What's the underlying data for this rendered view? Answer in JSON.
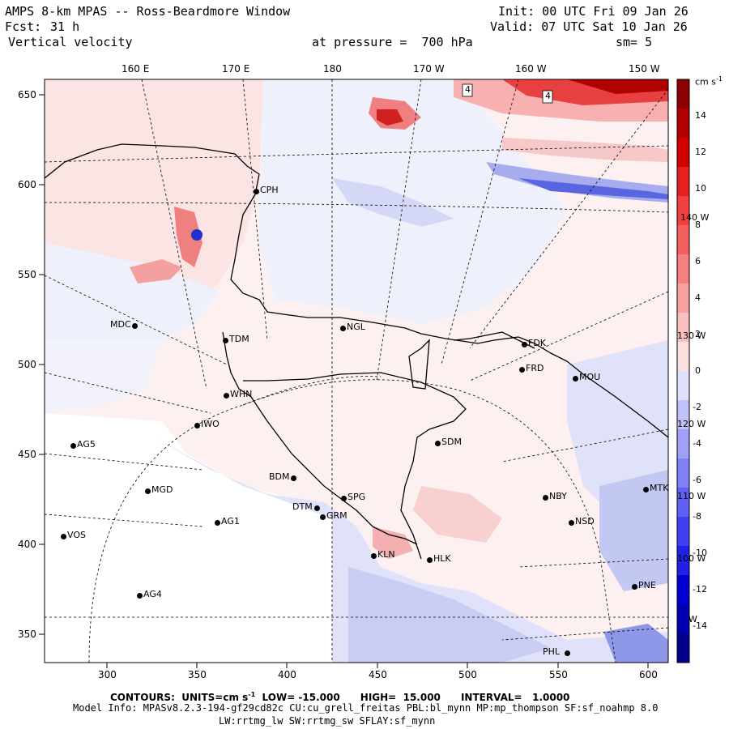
{
  "header": {
    "title": "AMPS 8-km MPAS -- Ross-Beardmore Window",
    "fcst_label": "Fcst:",
    "fcst_value": "31 h",
    "field": "Vertical velocity",
    "init": "Init: 00 UTC Fri 09 Jan 26",
    "valid": "Valid: 07 UTC Sat 10 Jan 26",
    "pressure": "at pressure =  700 hPa",
    "smooth": "sm= 5"
  },
  "footer": {
    "contours": "CONTOURS:  UNITS=cm s",
    "contours_sup": "-1",
    "contours_rest": "  LOW= -15.000      HIGH=  15.000      INTERVAL=   1.0000",
    "model_info": "Model Info: MPASv8.2.3-194-gf29cd82c CU:cu_grell_freitas PBL:bl_mynn MP:mp_thompson SF:sf_noahmp 8.0",
    "model_info2": "LW:rrtmg_lw SW:rrtmg_sw SFLAY:sf_mynn"
  },
  "axes": {
    "top_lon": [
      "160 E",
      "170 E",
      "180",
      "170 W",
      "160 W",
      "150 W"
    ],
    "x_ticks": [
      "300",
      "350",
      "400",
      "450",
      "500",
      "550",
      "600"
    ],
    "y_ticks": [
      "650",
      "600",
      "550",
      "500",
      "450",
      "400",
      "350"
    ]
  },
  "inner_labels": [
    "140 W",
    "130 W",
    "120 W",
    "110 W",
    "100 W",
    "W"
  ],
  "colorbar": {
    "unit": "cm s",
    "unit_sup": "-1",
    "ticks": [
      "14",
      "12",
      "10",
      "8",
      "6",
      "4",
      "2",
      "0",
      "-2",
      "-4",
      "-6",
      "-8",
      "-10",
      "-12",
      "-14"
    ],
    "colors": [
      "#8b0000",
      "#b00000",
      "#d00000",
      "#e62020",
      "#f04040",
      "#f46060",
      "#f68080",
      "#f8a0a0",
      "#fac0c0",
      "#fce0e0",
      "#e0e0fc",
      "#c0c0fa",
      "#a0a0f8",
      "#8080f6",
      "#6060f4",
      "#4040f0",
      "#2020e6",
      "#0000d0",
      "#0000b0",
      "#00008b"
    ]
  },
  "stations": [
    {
      "name": "CPH"
    },
    {
      "name": "MDC"
    },
    {
      "name": "TDM"
    },
    {
      "name": "NGL"
    },
    {
      "name": "FDK"
    },
    {
      "name": "FRD"
    },
    {
      "name": "MOU"
    },
    {
      "name": "WHN"
    },
    {
      "name": "IWO"
    },
    {
      "name": "AG5"
    },
    {
      "name": "SDM"
    },
    {
      "name": "BDM"
    },
    {
      "name": "MGD"
    },
    {
      "name": "SPG"
    },
    {
      "name": "DTM"
    },
    {
      "name": "GRM"
    },
    {
      "name": "NBY"
    },
    {
      "name": "MTK"
    },
    {
      "name": "AG1"
    },
    {
      "name": "VOS"
    },
    {
      "name": "NSD"
    },
    {
      "name": "KLN"
    },
    {
      "name": "HLK"
    },
    {
      "name": "AG4"
    },
    {
      "name": "PNE"
    },
    {
      "name": "PHL"
    }
  ],
  "contour_markers": [
    "4",
    "4"
  ]
}
